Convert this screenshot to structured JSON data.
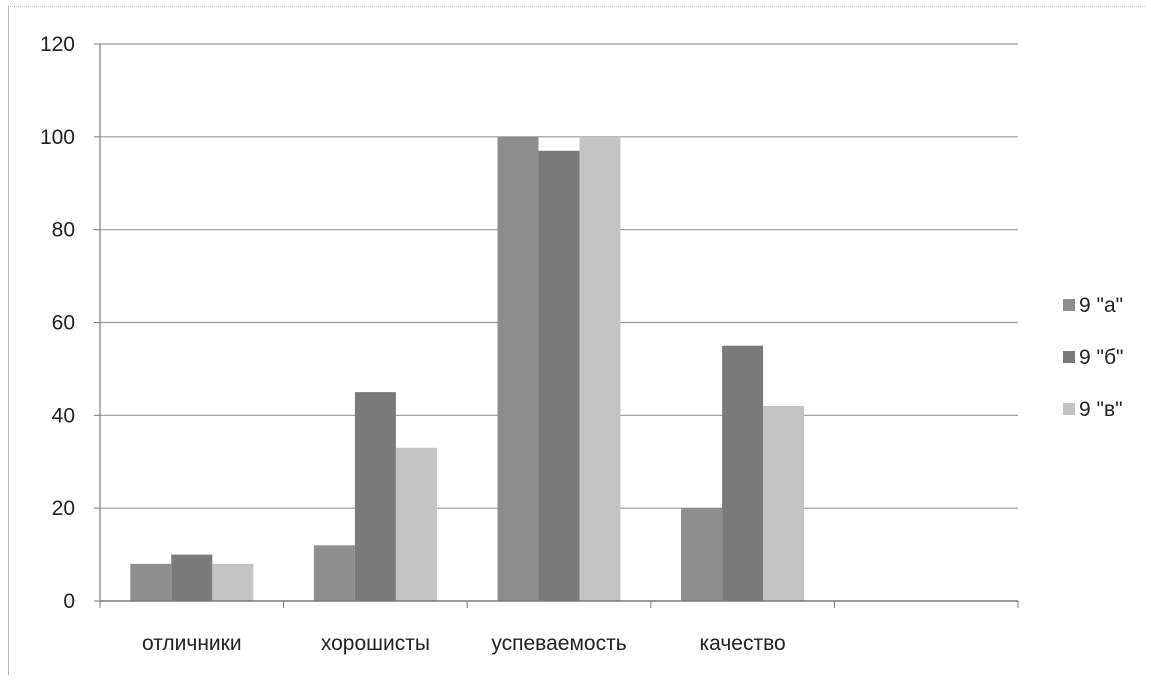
{
  "chart_data": {
    "type": "bar",
    "title": "",
    "xlabel": "",
    "ylabel": "",
    "categories": [
      "отличники",
      "хорошисты",
      "успеваемость",
      "качество"
    ],
    "extra_empty_category_slots": 1,
    "series": [
      {
        "name": "9 \"а\"",
        "values": [
          8,
          12,
          100,
          20
        ],
        "color": "#8e8e8e"
      },
      {
        "name": "9 \"б\"",
        "values": [
          10,
          45,
          97,
          55
        ],
        "color": "#7a7a7a"
      },
      {
        "name": "9 \"в\"",
        "values": [
          8,
          33,
          100,
          42
        ],
        "color": "#c4c4c4"
      }
    ],
    "ylim": [
      0,
      120
    ],
    "yticks": [
      0,
      20,
      40,
      60,
      80,
      100,
      120
    ],
    "grid": true,
    "legend_position": "right"
  }
}
